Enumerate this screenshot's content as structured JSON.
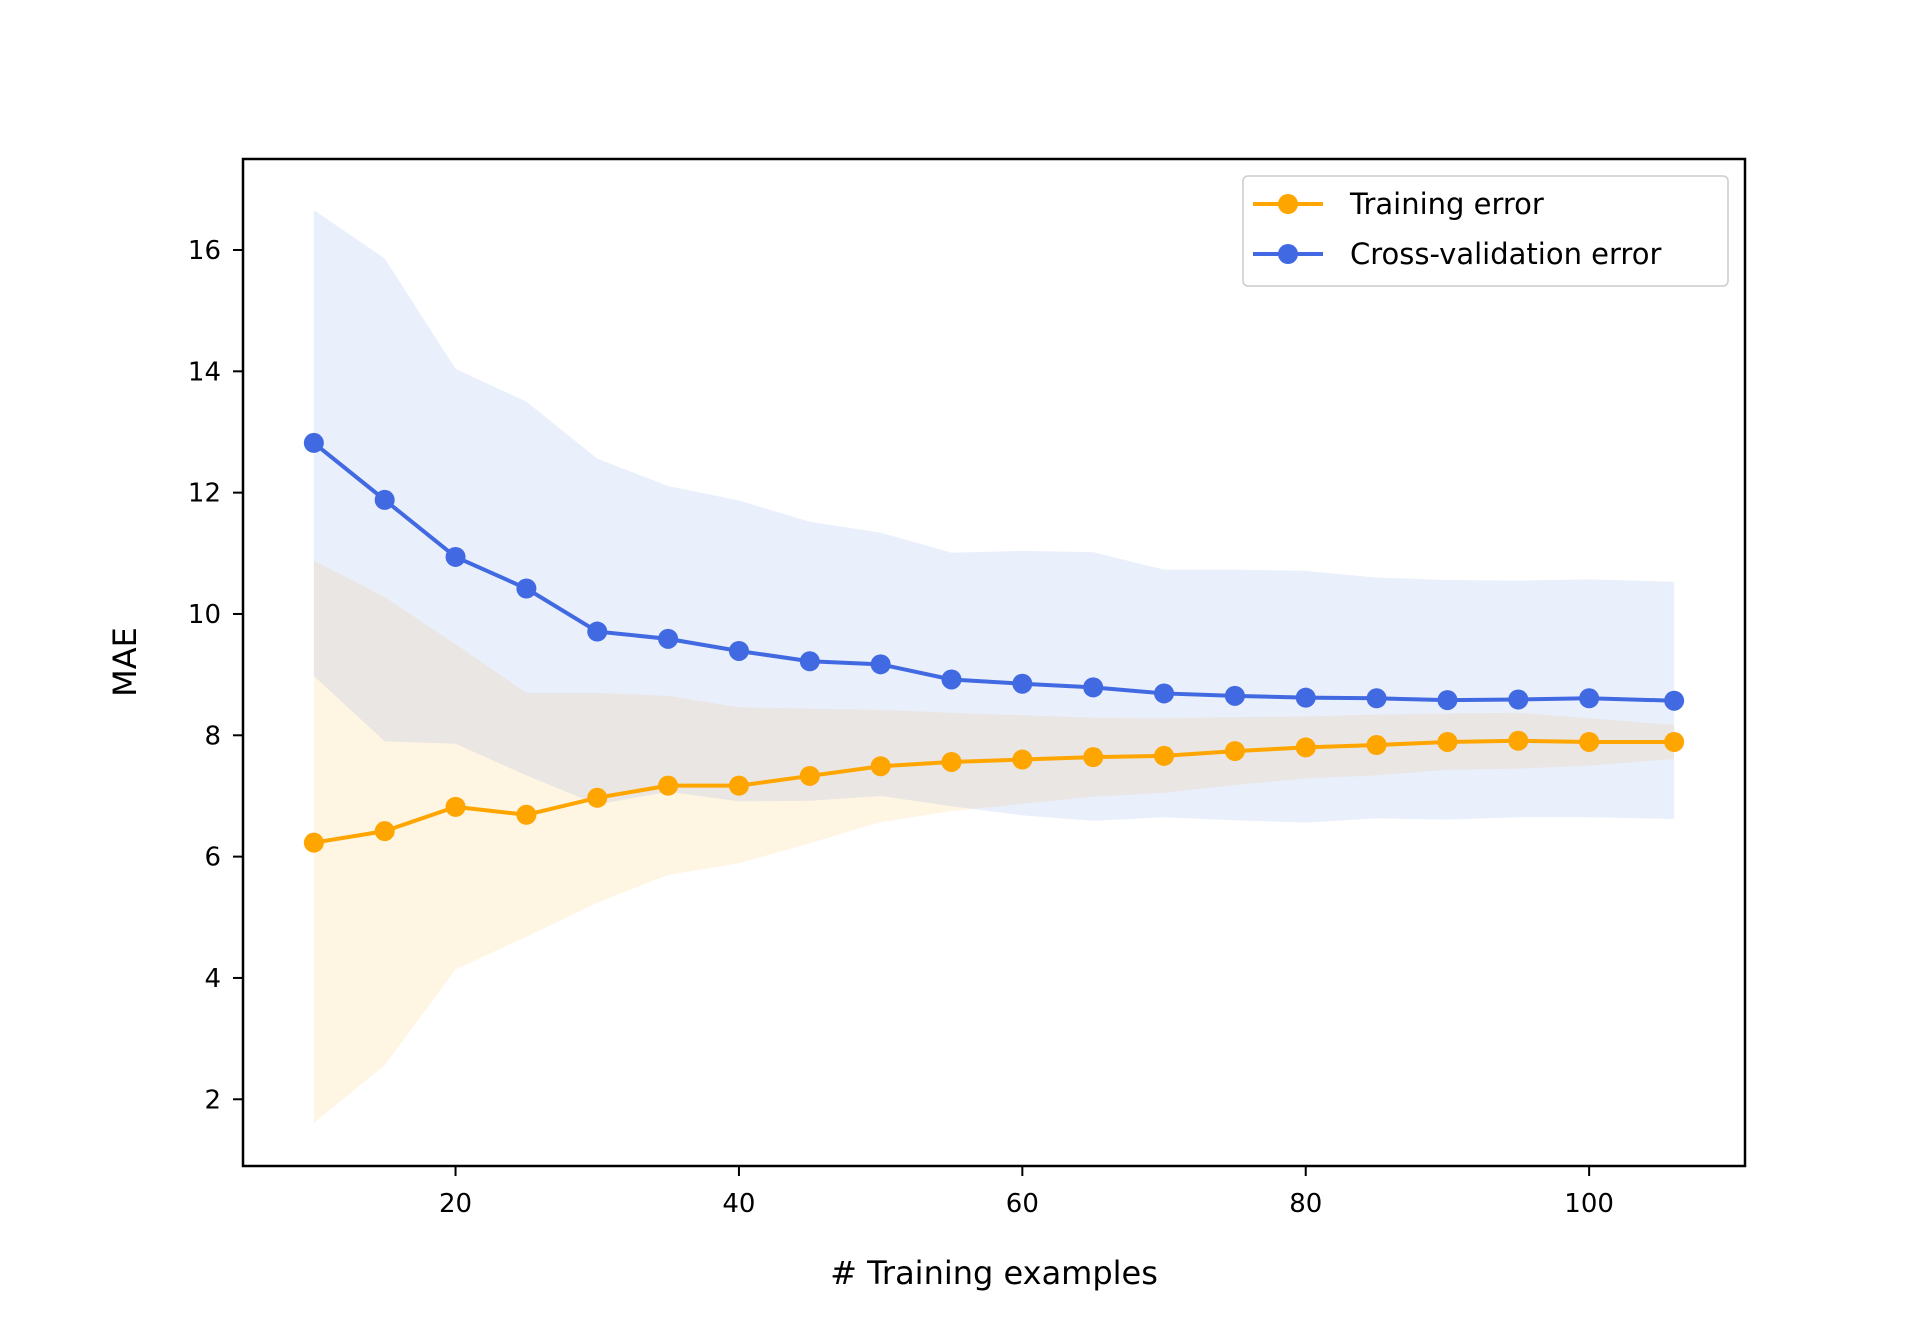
{
  "chart_data": {
    "type": "line",
    "title": "",
    "xlabel": "# Training examples",
    "ylabel": "MAE",
    "xlim": [
      5,
      111
    ],
    "ylim": [
      0.9,
      17.5
    ],
    "x_ticks": [
      20,
      40,
      60,
      80,
      100
    ],
    "y_ticks": [
      2,
      4,
      6,
      8,
      10,
      12,
      14,
      16
    ],
    "grid": false,
    "legend_position": "top-right",
    "x": [
      10,
      15,
      20,
      25,
      30,
      35,
      40,
      45,
      50,
      55,
      60,
      65,
      70,
      75,
      80,
      85,
      90,
      95,
      100,
      106
    ],
    "series": [
      {
        "name": "Training error",
        "color": "#FFA500",
        "marker": "circle",
        "values": [
          6.23,
          6.42,
          6.82,
          6.69,
          6.97,
          7.17,
          7.17,
          7.33,
          7.49,
          7.56,
          7.6,
          7.64,
          7.66,
          7.74,
          7.8,
          7.84,
          7.89,
          7.91,
          7.89,
          7.89
        ],
        "band_upper": [
          10.88,
          10.28,
          9.5,
          8.7,
          8.7,
          8.65,
          8.46,
          8.44,
          8.42,
          8.37,
          8.33,
          8.29,
          8.28,
          8.3,
          8.31,
          8.34,
          8.36,
          8.37,
          8.28,
          8.17
        ],
        "band_lower": [
          1.61,
          2.56,
          4.14,
          4.68,
          5.24,
          5.7,
          5.89,
          6.22,
          6.57,
          6.75,
          6.87,
          6.99,
          7.05,
          7.18,
          7.29,
          7.34,
          7.43,
          7.45,
          7.5,
          7.61
        ]
      },
      {
        "name": "Cross-validation error",
        "color": "#4169E1",
        "marker": "circle",
        "values": [
          12.82,
          11.88,
          10.94,
          10.42,
          9.71,
          9.59,
          9.39,
          9.22,
          9.17,
          8.92,
          8.85,
          8.79,
          8.69,
          8.65,
          8.62,
          8.61,
          8.58,
          8.59,
          8.61,
          8.57
        ],
        "band_upper": [
          16.66,
          15.86,
          14.04,
          13.5,
          12.56,
          12.11,
          11.87,
          11.52,
          11.34,
          11.01,
          11.04,
          11.02,
          10.73,
          10.73,
          10.71,
          10.6,
          10.56,
          10.55,
          10.57,
          10.53
        ],
        "band_lower": [
          8.98,
          7.9,
          7.86,
          7.34,
          6.86,
          7.07,
          6.91,
          6.92,
          7.0,
          6.83,
          6.68,
          6.59,
          6.65,
          6.6,
          6.56,
          6.63,
          6.61,
          6.65,
          6.65,
          6.62
        ]
      }
    ]
  }
}
